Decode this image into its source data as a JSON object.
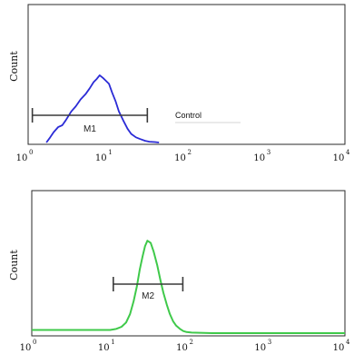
{
  "chart_data": [
    {
      "type": "area",
      "ylabel": "Count",
      "x_scale": "log",
      "xlim": [
        1,
        10000
      ],
      "x_ticks": [
        {
          "base": "10",
          "exp": "0",
          "value": 1
        },
        {
          "base": "10",
          "exp": "1",
          "value": 10
        },
        {
          "base": "10",
          "exp": "2",
          "value": 100
        },
        {
          "base": "10",
          "exp": "3",
          "value": 1000
        },
        {
          "base": "10",
          "exp": "4",
          "value": 10000
        }
      ],
      "legend_text": "Control",
      "series": [
        {
          "color": "#2b2bd6",
          "x": [
            1.7,
            1.9,
            2.1,
            2.4,
            2.7,
            3.0,
            3.5,
            4.0,
            4.6,
            5.3,
            6.0,
            6.7,
            7.4,
            8.0,
            8.8,
            9.5,
            10.5,
            11.5,
            12.7,
            14,
            16,
            18,
            20,
            23,
            26,
            30,
            34,
            40,
            45
          ],
          "y": [
            0,
            0.06,
            0.12,
            0.18,
            0.2,
            0.26,
            0.36,
            0.42,
            0.5,
            0.56,
            0.63,
            0.7,
            0.74,
            0.78,
            0.75,
            0.72,
            0.68,
            0.58,
            0.48,
            0.36,
            0.25,
            0.16,
            0.1,
            0.06,
            0.04,
            0.02,
            0.01,
            0.005,
            0
          ]
        }
      ],
      "marker": {
        "label": "M1",
        "x_start": 1.13,
        "x_end": 32
      }
    },
    {
      "type": "area",
      "ylabel": "Count",
      "x_scale": "log",
      "xlim": [
        1,
        10000
      ],
      "x_ticks": [
        {
          "base": "10",
          "exp": "0",
          "value": 1
        },
        {
          "base": "10",
          "exp": "1",
          "value": 10
        },
        {
          "base": "10",
          "exp": "2",
          "value": 100
        },
        {
          "base": "10",
          "exp": "3",
          "value": 1000
        },
        {
          "base": "10",
          "exp": "4",
          "value": 10000
        }
      ],
      "series": [
        {
          "color": "#3fc94a",
          "x": [
            1,
            2,
            5,
            10,
            12,
            14,
            16,
            18,
            20,
            22,
            24,
            26,
            28,
            30,
            33,
            36,
            40,
            44,
            48,
            53,
            58,
            64,
            70,
            78,
            86,
            95,
            110,
            200,
            1000,
            10000
          ],
          "y": [
            0.03,
            0.03,
            0.03,
            0.03,
            0.04,
            0.06,
            0.1,
            0.18,
            0.3,
            0.44,
            0.6,
            0.72,
            0.82,
            0.87,
            0.85,
            0.77,
            0.64,
            0.5,
            0.38,
            0.27,
            0.18,
            0.11,
            0.07,
            0.04,
            0.02,
            0.01,
            0.005,
            0,
            0,
            0
          ]
        }
      ],
      "marker": {
        "label": "M2",
        "x_start": 11,
        "x_end": 85
      }
    }
  ]
}
